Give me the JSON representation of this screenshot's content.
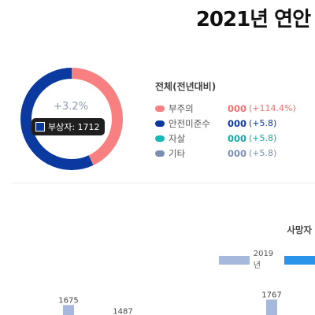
{
  "header": {
    "title": "2021년 연안"
  },
  "donut": {
    "center_pct": "+3.2%",
    "tooltip": "부상자: 1712",
    "colors": {
      "pink": "#f88080",
      "navy": "#0a3aa0"
    }
  },
  "legend": {
    "title": "전체(전년대비)",
    "items": [
      {
        "name": "부주의",
        "value": "000",
        "change": "(+114.4%)",
        "color": "#f88080"
      },
      {
        "name": "안전미준수",
        "value": "000",
        "change": "(+5.8)",
        "color": "#0a3aa0"
      },
      {
        "name": "자살",
        "value": "000",
        "change": "(+5.8)",
        "color": "#1ab8b8"
      },
      {
        "name": "기타",
        "value": "000",
        "change": "(+5.8)",
        "color": "#7a8fb3"
      }
    ]
  },
  "casualties": {
    "title": "사망자",
    "legend_2019": "2019년"
  },
  "chart_data": [
    {
      "type": "pie",
      "slices": [
        {
          "label": "부주의",
          "value": 43,
          "color": "#f88080"
        },
        {
          "label": "안전미준수",
          "value": 57,
          "color": "#0a3aa0"
        }
      ],
      "center_label": "+3.2%"
    },
    {
      "type": "bar",
      "title": "사망자",
      "categories": [
        "",
        "",
        ""
      ],
      "series": [
        {
          "name": "2019년",
          "values": [
            1675,
            1487,
            1767
          ],
          "color": "#a6b8dc"
        }
      ]
    }
  ]
}
